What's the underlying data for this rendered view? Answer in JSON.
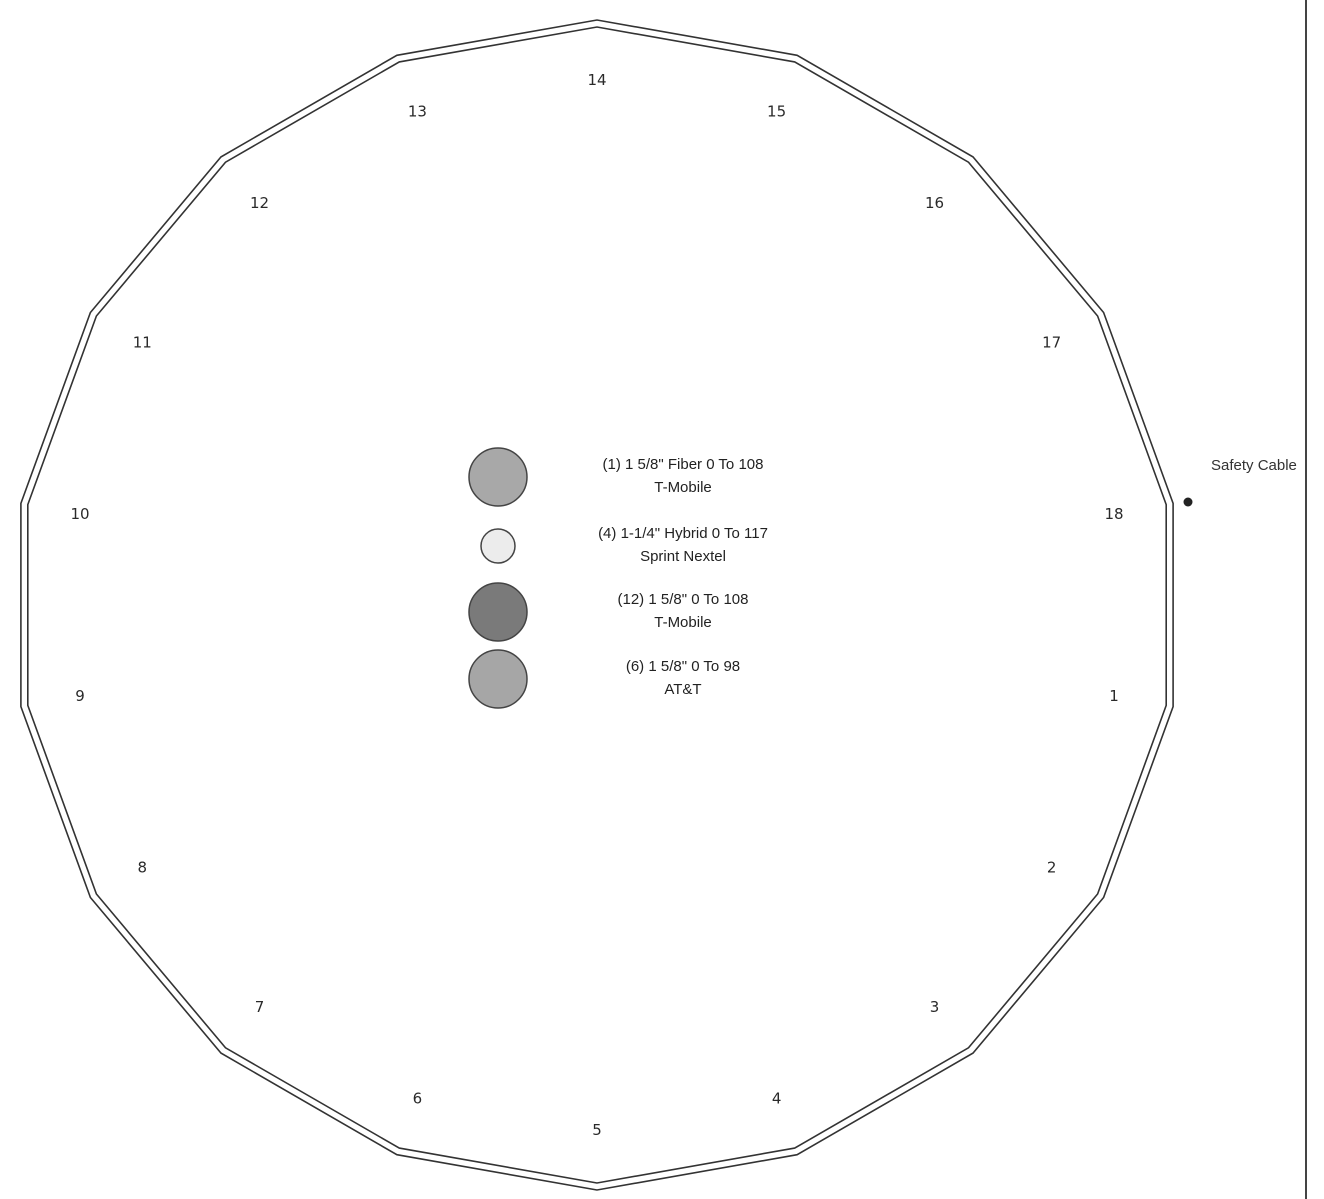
{
  "face_numbers": [
    "1",
    "2",
    "3",
    "4",
    "5",
    "6",
    "7",
    "8",
    "9",
    "10",
    "11",
    "12",
    "13",
    "14",
    "15",
    "16",
    "17",
    "18"
  ],
  "legend": [
    {
      "line1": "(1) 1 5/8\" Fiber 0 To 108",
      "line2": "T-Mobile",
      "fill": "#a8a8a8",
      "size": "large"
    },
    {
      "line1": "(4) 1-1/4\" Hybrid 0 To 117",
      "line2": "Sprint Nextel",
      "fill": "#ececec",
      "size": "small"
    },
    {
      "line1": "(12) 1 5/8\"  0 To 108",
      "line2": "T-Mobile",
      "fill": "#7a7a7a",
      "size": "large"
    },
    {
      "line1": "(6) 1 5/8\"   0 To 98",
      "line2": "AT&T",
      "fill": "#a6a6a6",
      "size": "large"
    }
  ],
  "safety_cable_label": "Safety Cable",
  "colors": {
    "outline": "#333333",
    "marker": "#222222",
    "divider": "#444444"
  }
}
